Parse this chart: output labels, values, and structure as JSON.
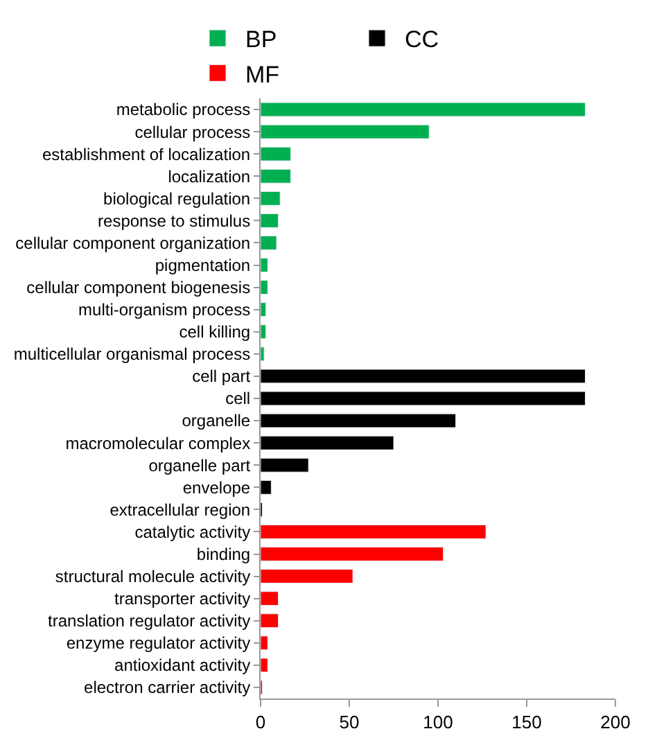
{
  "chart_data": {
    "type": "bar",
    "orientation": "horizontal",
    "categories": [
      "metabolic process",
      "cellular process",
      "establishment of localization",
      "localization",
      "biological regulation",
      "response to stimulus",
      "cellular component organization",
      "pigmentation",
      "cellular component biogenesis",
      "multi-organism process",
      "cell killing",
      "multicellular organismal process",
      "cell part",
      "cell",
      "organelle",
      "macromolecular complex",
      "organelle part",
      "envelope",
      "extracellular region",
      "catalytic activity",
      "binding",
      "structural molecule activity",
      "transporter activity",
      "translation regulator activity",
      "enzyme regulator activity",
      "antioxidant activity",
      "electron carrier activity"
    ],
    "series": [
      {
        "name": "BP",
        "color": "#00b050",
        "values": [
          183,
          95,
          17,
          17,
          11,
          10,
          9,
          4,
          4,
          3,
          3,
          2,
          null,
          null,
          null,
          null,
          null,
          null,
          null,
          null,
          null,
          null,
          null,
          null,
          null,
          null,
          null
        ]
      },
      {
        "name": "CC",
        "color": "#000000",
        "values": [
          null,
          null,
          null,
          null,
          null,
          null,
          null,
          null,
          null,
          null,
          null,
          null,
          183,
          183,
          110,
          75,
          27,
          6,
          1,
          null,
          null,
          null,
          null,
          null,
          null,
          null,
          null
        ]
      },
      {
        "name": "MF",
        "color": "#ff0000",
        "values": [
          null,
          null,
          null,
          null,
          null,
          null,
          null,
          null,
          null,
          null,
          null,
          null,
          null,
          null,
          null,
          null,
          null,
          null,
          null,
          127,
          103,
          52,
          10,
          10,
          4,
          4,
          1
        ]
      }
    ],
    "xlim": [
      0,
      200
    ],
    "xticks": [
      0,
      50,
      100,
      150,
      200
    ],
    "legend": "top"
  }
}
